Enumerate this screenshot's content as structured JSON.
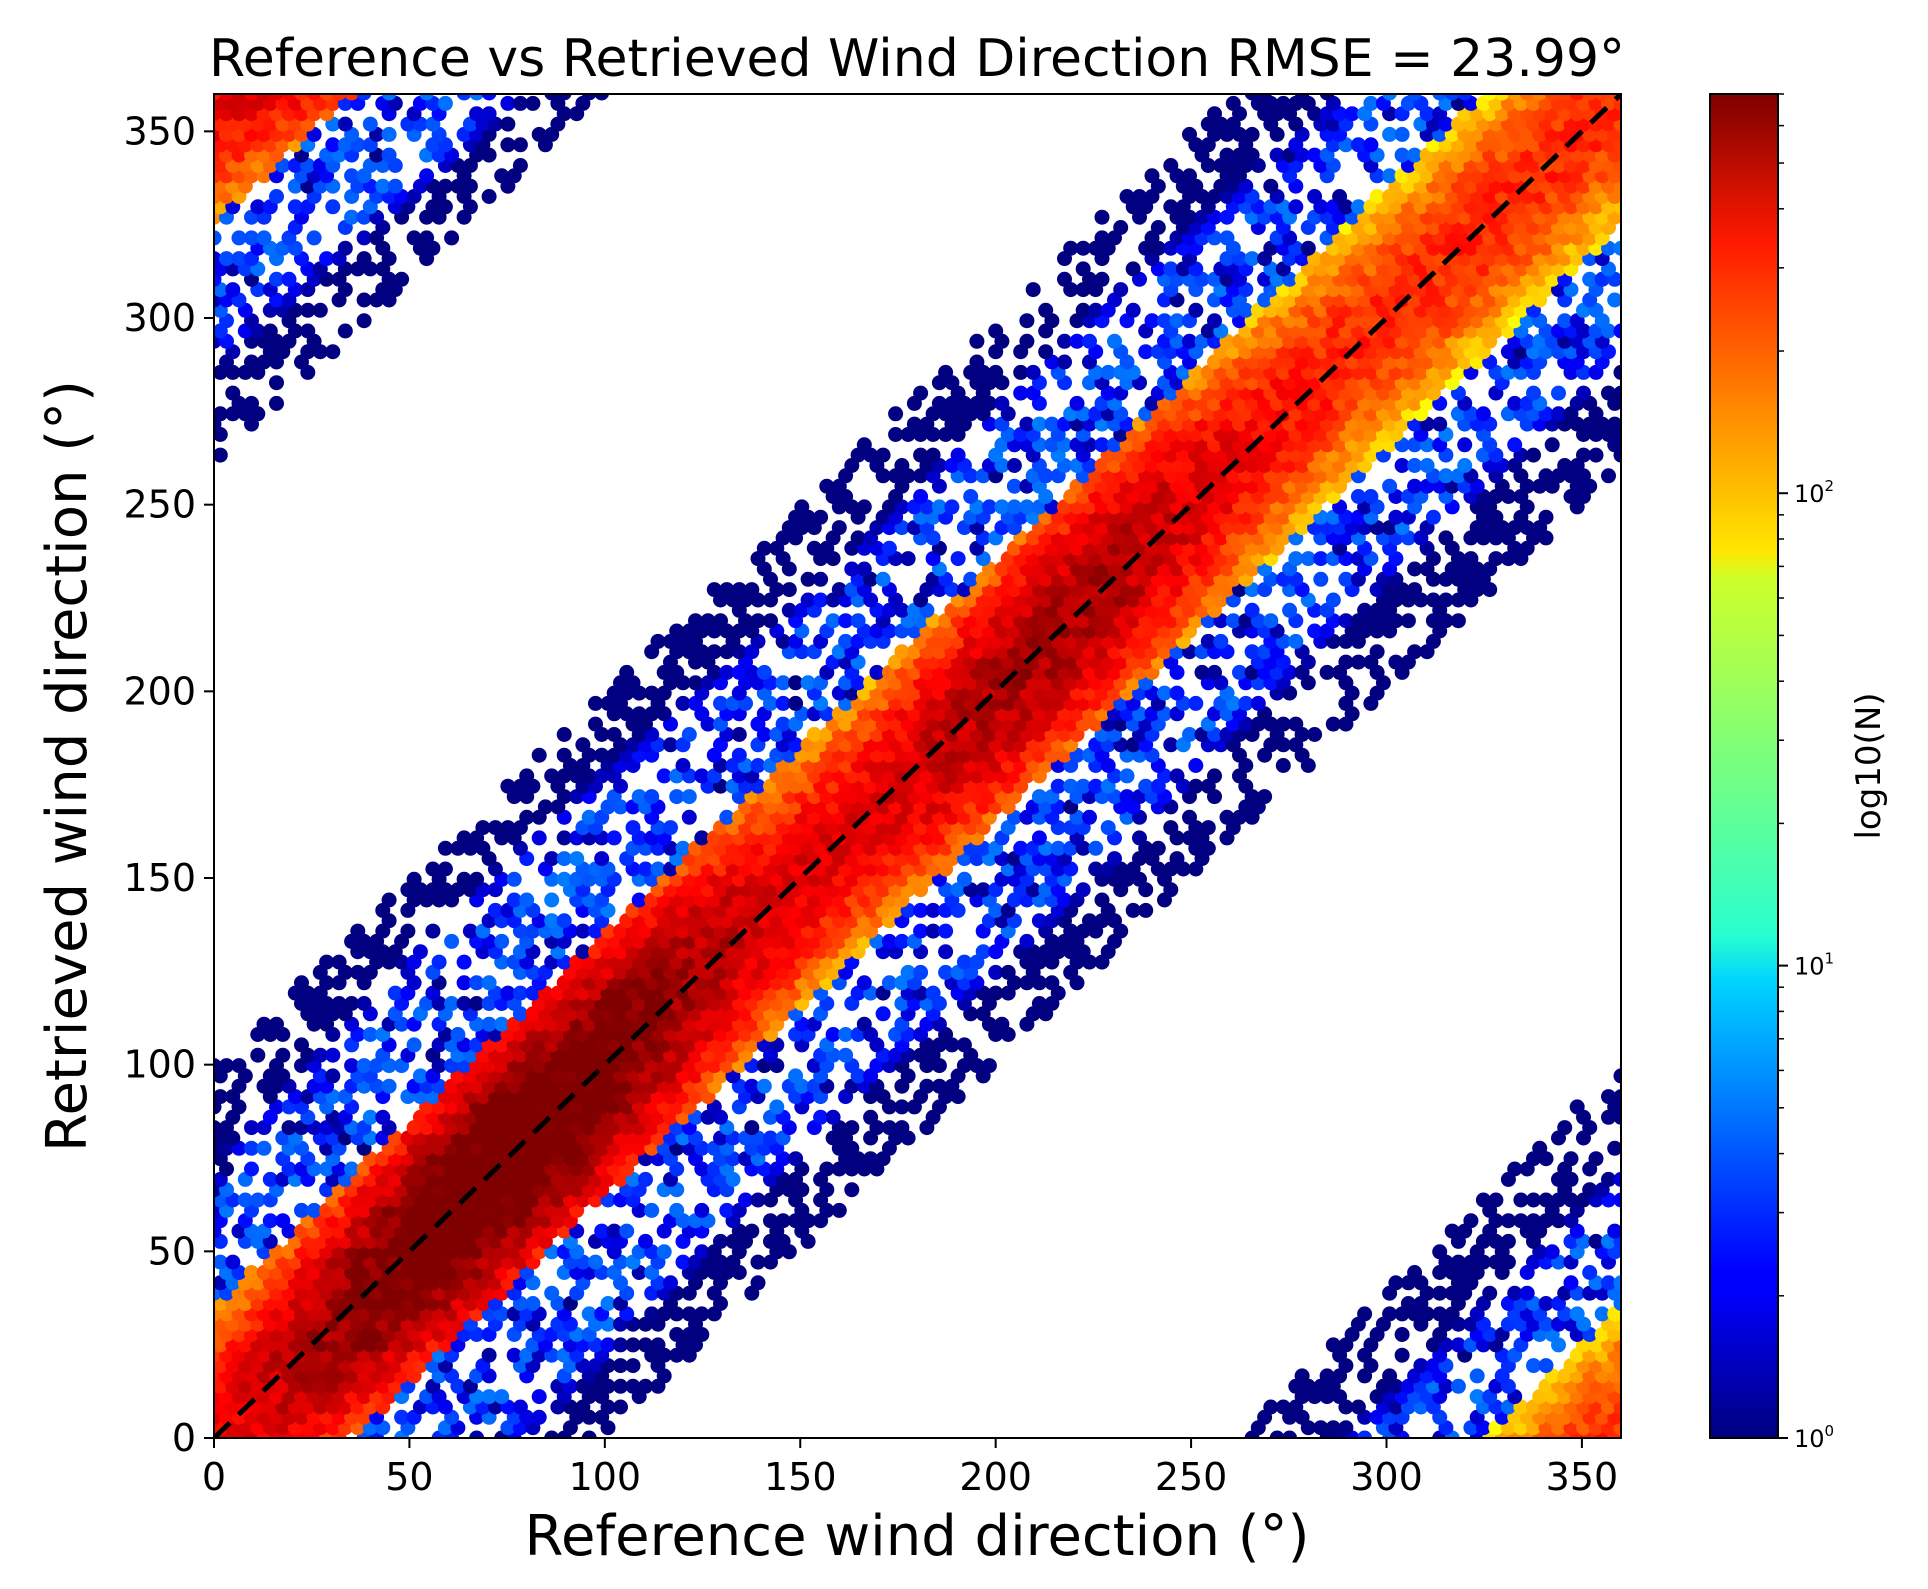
{
  "chart_data": {
    "type": "hexbin",
    "title": "Reference vs Retrieved Wind Direction RMSE = 23.99°",
    "xlabel": "Reference wind direction (°)",
    "ylabel": "Retrieved wind direction (°)",
    "xlim": [
      0,
      360
    ],
    "ylim": [
      0,
      360
    ],
    "xticks": [
      0,
      50,
      100,
      150,
      200,
      250,
      300,
      350
    ],
    "yticks": [
      0,
      50,
      100,
      150,
      200,
      250,
      300,
      350
    ],
    "reference_line": {
      "style": "dashed",
      "color": "#000000",
      "from": [
        0,
        0
      ],
      "to": [
        360,
        360
      ]
    },
    "colorbar": {
      "label": "log10(N)",
      "scale": "log",
      "range": [
        1,
        700
      ],
      "ticks": [
        {
          "value": 1,
          "base": "10",
          "exp": "0"
        },
        {
          "value": 10,
          "base": "10",
          "exp": "1"
        },
        {
          "value": 100,
          "base": "10",
          "exp": "2"
        }
      ],
      "colormap": "jet"
    },
    "rmse_deg": 23.99,
    "density_structure": {
      "main_band_center_offset_deg": 0,
      "main_band_halfwidth_deg": 35,
      "outer_sparse_band_halfwidth_deg": 100,
      "peak_count": 700,
      "peak_location": [
        75,
        78
      ],
      "secondary_peak_location": [
        215,
        215
      ],
      "wraparound": true
    },
    "grid": false,
    "legend": "none"
  }
}
